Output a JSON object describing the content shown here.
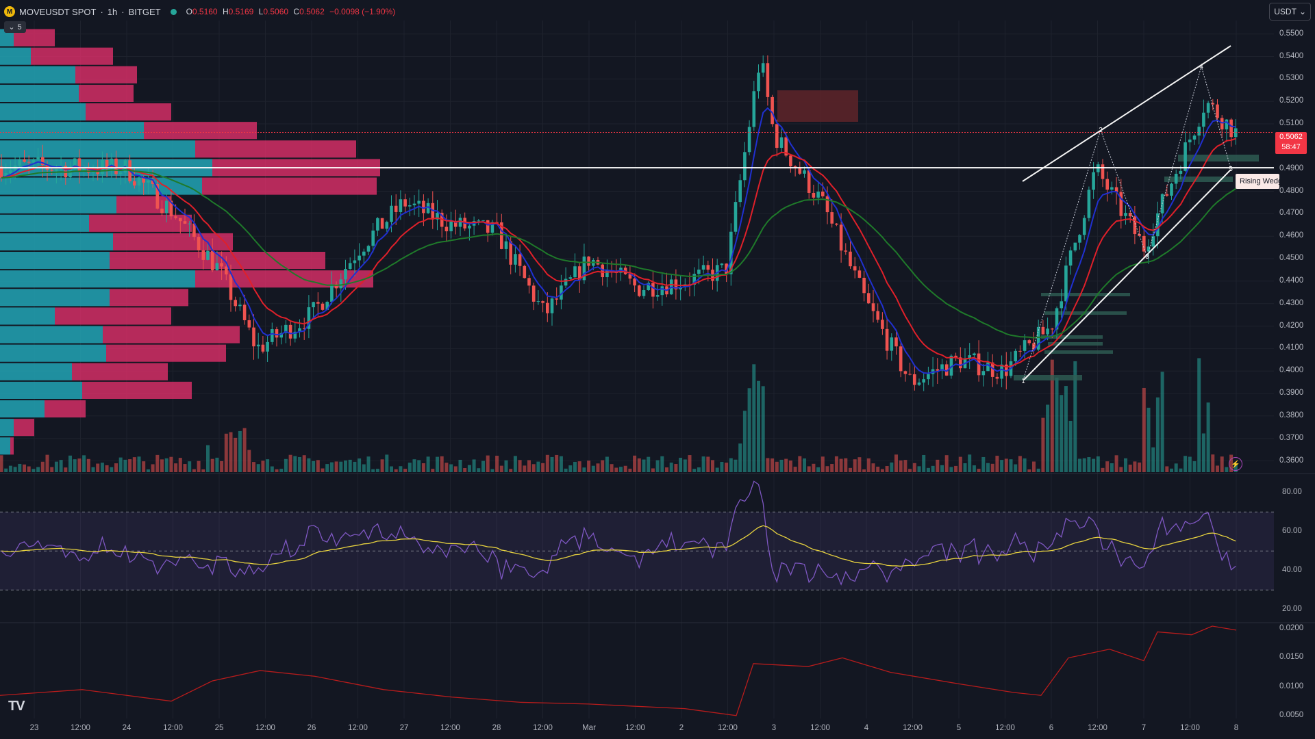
{
  "header": {
    "coin_icon": "move-coin-icon",
    "symbol": "MOVEUSDT SPOT",
    "interval": "1h",
    "exchange": "BITGET",
    "separator": "·",
    "ohlc": {
      "o_label": "O",
      "o": "0.5160",
      "h_label": "H",
      "h": "0.5169",
      "l_label": "L",
      "l": "0.5060",
      "c_label": "C",
      "c": "0.5062",
      "change": "−0.0098 (−1.90%)"
    }
  },
  "indicator_toggle": {
    "label": "5",
    "icon": "chevron-down-icon"
  },
  "currency_button": {
    "label": "USDT",
    "icon": "chevron-down-icon"
  },
  "price_axis": [
    "0.5500",
    "0.5400",
    "0.5300",
    "0.5200",
    "0.5100",
    "0.4900",
    "0.4800",
    "0.4700",
    "0.4600",
    "0.4500",
    "0.4400",
    "0.4300",
    "0.4200",
    "0.4100",
    "0.4000",
    "0.3900",
    "0.3800",
    "0.3700",
    "0.3600"
  ],
  "current_price": {
    "value": "0.5062",
    "countdown": "58:47"
  },
  "pattern_label": "Rising Wedge",
  "wedge_points": [
    "1",
    "2",
    "3",
    "4",
    "5"
  ],
  "rsi_axis": [
    "80.00",
    "60.00",
    "40.00",
    "20.00"
  ],
  "third_axis": [
    "0.0200",
    "0.0150",
    "0.0100",
    "0.0050"
  ],
  "time_axis": [
    "23",
    "12:00",
    "24",
    "12:00",
    "25",
    "12:00",
    "26",
    "12:00",
    "27",
    "12:00",
    "28",
    "12:00",
    "Mar",
    "12:00",
    "2",
    "12:00",
    "3",
    "12:00",
    "4",
    "12:00",
    "5",
    "12:00",
    "6",
    "12:00",
    "7",
    "12:00",
    "8"
  ],
  "logo": "TV",
  "alert_icon": "lightning-icon",
  "colors": {
    "up": "#26a69a",
    "down": "#ef5350",
    "ema_fast": "#2030d0",
    "ema_mid": "#e0202a",
    "ema_slow": "#1f7a2a",
    "rsi": "#7e57c2",
    "rsi_ma": "#e8d33f",
    "vp_up": "#22a5b5",
    "vp_down": "#e0306a"
  },
  "chart_data": {
    "type": "candlestick",
    "symbol": "MOVEUSDT",
    "timeframe": "1h",
    "close_path_key_points": [
      {
        "x": "23",
        "y": 0.491
      },
      {
        "x": "24",
        "y": 0.49
      },
      {
        "x": "24 12:00",
        "y": 0.47
      },
      {
        "x": "25",
        "y": 0.445
      },
      {
        "x": "25 12:00",
        "y": 0.41
      },
      {
        "x": "26",
        "y": 0.425
      },
      {
        "x": "26 12:00",
        "y": 0.455
      },
      {
        "x": "27",
        "y": 0.475
      },
      {
        "x": "27 12:00",
        "y": 0.465
      },
      {
        "x": "28",
        "y": 0.462
      },
      {
        "x": "28 12:00",
        "y": 0.425
      },
      {
        "x": "Mar",
        "y": 0.45
      },
      {
        "x": "Mar 12:00",
        "y": 0.437
      },
      {
        "x": "2",
        "y": 0.44
      },
      {
        "x": "2 12:00",
        "y": 0.445
      },
      {
        "x": "3 early",
        "y": 0.54
      },
      {
        "x": "3",
        "y": 0.505
      },
      {
        "x": "3 12:00",
        "y": 0.475
      },
      {
        "x": "4",
        "y": 0.43
      },
      {
        "x": "4 12:00",
        "y": 0.395
      },
      {
        "x": "5",
        "y": 0.405
      },
      {
        "x": "5 12:00",
        "y": 0.4
      },
      {
        "x": "6",
        "y": 0.42
      },
      {
        "x": "6 12:00",
        "y": 0.49
      },
      {
        "x": "7",
        "y": 0.455
      },
      {
        "x": "7 12:00",
        "y": 0.52
      },
      {
        "x": "8",
        "y": 0.506
      }
    ],
    "ylim": [
      0.355,
      0.556
    ],
    "rsi_levels": {
      "upper": 70,
      "middle": 50,
      "lower": 30
    },
    "rsi_ylim": [
      15,
      88
    ],
    "third_ylim": [
      0.0045,
      0.0205
    ]
  }
}
